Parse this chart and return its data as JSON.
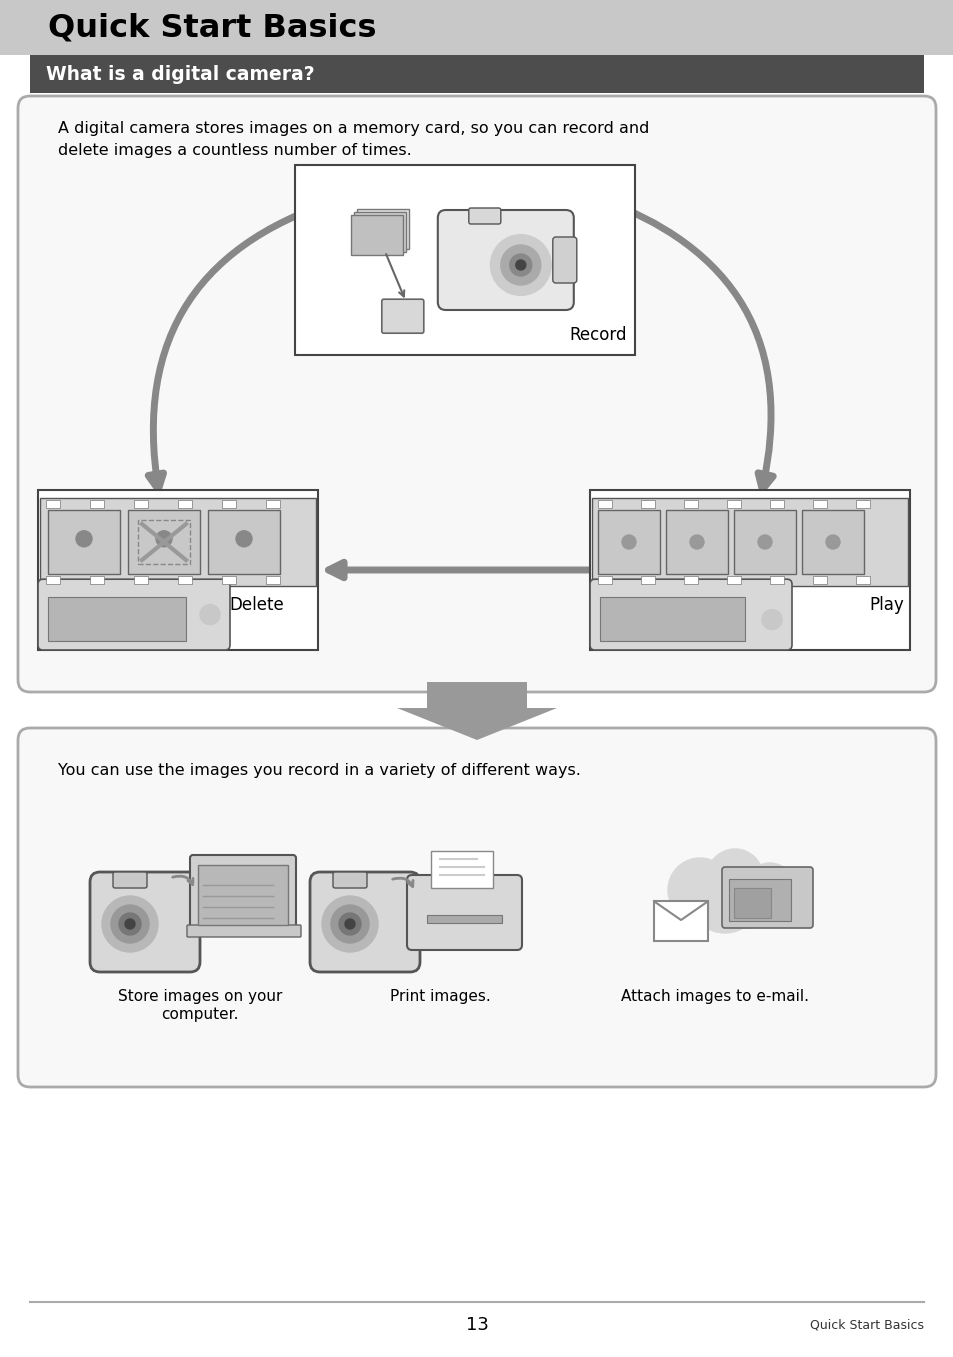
{
  "title": "Quick Start Basics",
  "title_bg": "#c8c8c8",
  "title_color": "#000000",
  "subtitle": "What is a digital camera?",
  "subtitle_bg": "#4d4d4d",
  "subtitle_color": "#ffffff",
  "page_bg": "#ffffff",
  "box1_text_line1": "A digital camera stores images on a memory card, so you can record and",
  "box1_text_line2": "delete images a countless number of times.",
  "box1_bg": "#f8f8f8",
  "box1_border": "#aaaaaa",
  "record_label": "Record",
  "delete_label": "Delete",
  "play_label": "Play",
  "box2_text": "You can use the images you record in a variety of different ways.",
  "box2_bg": "#f8f8f8",
  "box2_border": "#aaaaaa",
  "caption1_line1": "Store images on your",
  "caption1_line2": "computer.",
  "caption2": "Print images.",
  "caption3": "Attach images to e-mail.",
  "page_number": "13",
  "footer_right": "Quick Start Basics",
  "footer_line_color": "#aaaaaa",
  "arrow_color": "#888888",
  "big_arrow_color": "#999999"
}
